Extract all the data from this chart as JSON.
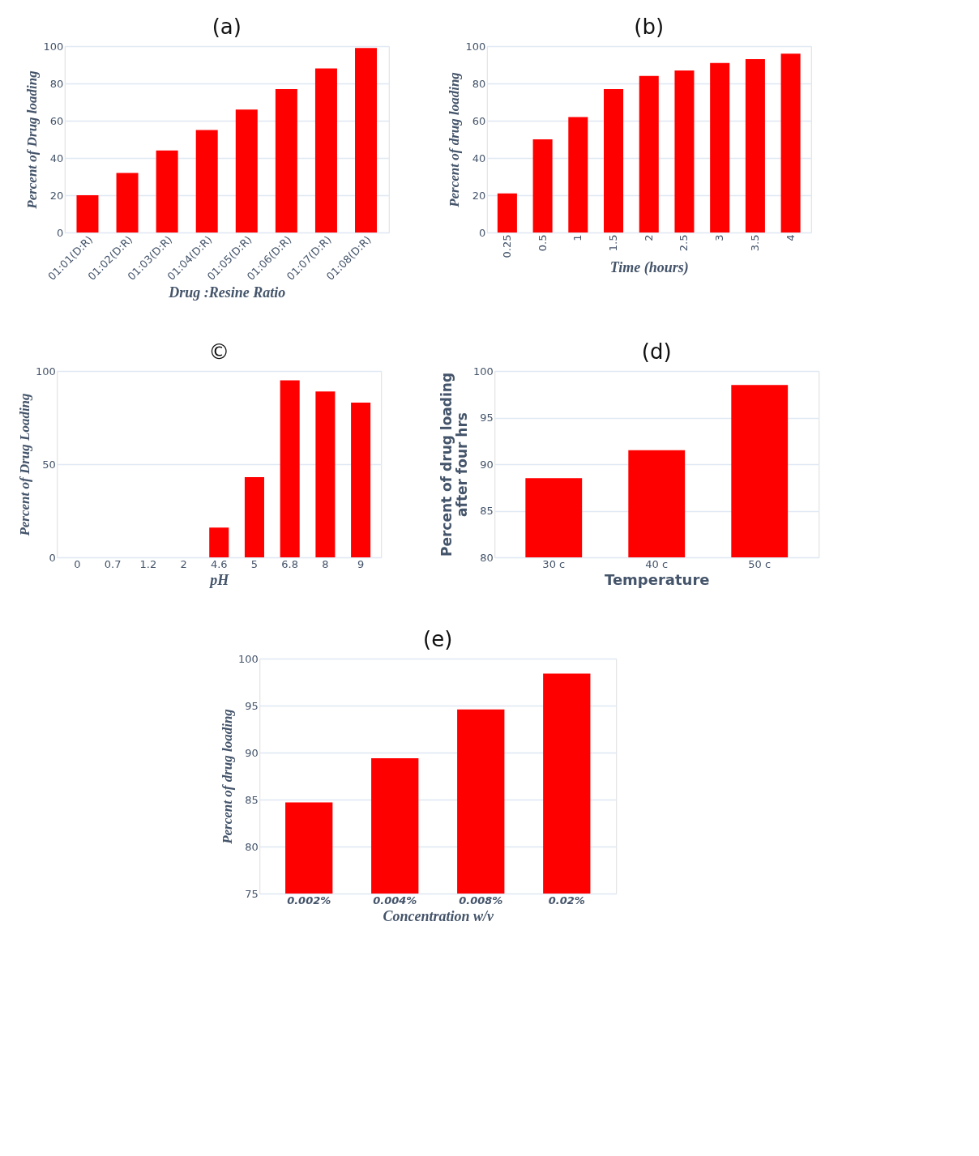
{
  "chart_data": [
    {
      "type": "bar",
      "title": "(a)",
      "xlabel": "Drug :Resine Ratio",
      "ylabel": "Percent of  Drug loading",
      "categories": [
        "01:01(D:R)",
        "01:02(D:R)",
        "01:03(D:R)",
        "01:04(D:R)",
        "01:05(D:R)",
        "01:06(D:R)",
        "01:07(D:R)",
        "01:08(D:R)"
      ],
      "values": [
        20,
        32,
        44,
        55,
        66,
        77,
        88,
        99
      ],
      "color": "#ff0000",
      "ylim": [
        0,
        100
      ],
      "yticks": [
        0,
        20,
        40,
        60,
        80,
        100
      ],
      "grid": "y"
    },
    {
      "type": "bar",
      "title": "(b)",
      "xlabel": "Time (hours)",
      "ylabel": "Percent of drug loading",
      "categories": [
        "0.25",
        "0.5",
        "1",
        "1.5",
        "2",
        "2.5",
        "3",
        "3.5",
        "4"
      ],
      "values": [
        21,
        50,
        62,
        77,
        84,
        87,
        91,
        93,
        96
      ],
      "color": "#ff0000",
      "ylim": [
        0,
        100
      ],
      "yticks": [
        0,
        20,
        40,
        60,
        80,
        100
      ],
      "grid": "y"
    },
    {
      "type": "bar",
      "title": "©",
      "xlabel": "pH",
      "ylabel": "Percent of Drug Loading",
      "categories": [
        "0",
        "0.7",
        "1.2",
        "2",
        "4.6",
        "5",
        "6.8",
        "8",
        "9"
      ],
      "values": [
        0,
        0,
        0,
        0,
        16,
        43,
        95,
        89,
        83
      ],
      "color": "#ff0000",
      "ylim": [
        0,
        100
      ],
      "yticks": [
        0,
        50,
        100
      ],
      "grid": "y"
    },
    {
      "type": "bar",
      "title": "(d)",
      "xlabel": "Temperature",
      "ylabel": [
        "Percent of drug loading",
        "after four hrs"
      ],
      "categories": [
        "30 c",
        "40 c",
        "50 c"
      ],
      "values": [
        88.5,
        91.5,
        98.5
      ],
      "color": "#ff0000",
      "ylim": [
        80,
        100
      ],
      "yticks": [
        80,
        85,
        90,
        95,
        100
      ],
      "grid": "y"
    },
    {
      "type": "bar",
      "title": "(e)",
      "xlabel": "Concentration  w/v",
      "ylabel": "Percent of drug loading",
      "categories": [
        "0.002%",
        "0.004%",
        "0.008%",
        "0.02%"
      ],
      "values": [
        84.7,
        89.4,
        94.6,
        98.4
      ],
      "color": "#ff0000",
      "ylim": [
        75,
        100
      ],
      "yticks": [
        75,
        80,
        85,
        90,
        95,
        100
      ],
      "grid": "y"
    }
  ]
}
